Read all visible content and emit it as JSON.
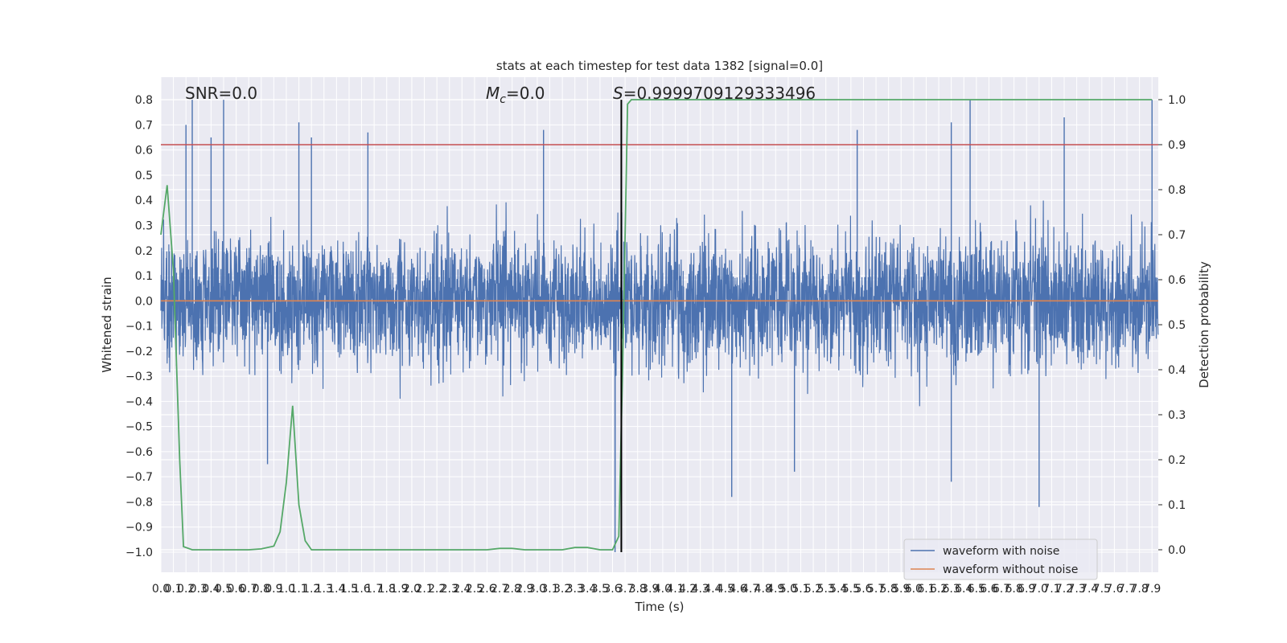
{
  "chart_data": {
    "type": "line",
    "title": "stats at each timestep for test data 1382 [signal=0.0]",
    "xlabel": "Time (s)",
    "ylabel_left": "Whitened strain",
    "ylabel_right": "Detection probability",
    "xlim": [
      0.0,
      7.95
    ],
    "ylim_left": [
      -1.08,
      0.89
    ],
    "ylim_right": [
      -0.05,
      1.05
    ],
    "grid": true,
    "legend_placement": "lower-right",
    "x_ticks": [
      0.0,
      0.1,
      0.2,
      0.3,
      0.4,
      0.5,
      0.6,
      0.7,
      0.8,
      0.9,
      1.0,
      1.1,
      1.2,
      1.3,
      1.4,
      1.5,
      1.6,
      1.7,
      1.8,
      1.9,
      2.0,
      2.1,
      2.2,
      2.3,
      2.4,
      2.5,
      2.6,
      2.7,
      2.8,
      2.9,
      3.0,
      3.1,
      3.2,
      3.3,
      3.4,
      3.5,
      3.6,
      3.7,
      3.8,
      3.9,
      4.0,
      4.1,
      4.2,
      4.3,
      4.4,
      4.5,
      4.6,
      4.7,
      4.8,
      4.9,
      5.0,
      5.1,
      5.2,
      5.3,
      5.4,
      5.5,
      5.6,
      5.7,
      5.8,
      5.9,
      6.0,
      6.1,
      6.2,
      6.3,
      6.4,
      6.5,
      6.6,
      6.7,
      6.8,
      6.9,
      7.0,
      7.1,
      7.2,
      7.3,
      7.4,
      7.5,
      7.6,
      7.7,
      7.8,
      7.9
    ],
    "x_tick_labels": [
      "0.0",
      "0.1",
      "0.2",
      "0.3",
      "0.4",
      "0.5",
      "0.6",
      "0.7",
      "0.8",
      "0.9",
      "1.0",
      "1.1",
      "1.2",
      "1.3",
      "1.4",
      "1.5",
      "1.6",
      "1.7",
      "1.8",
      "1.9",
      "2.0",
      "2.1",
      "2.2",
      "2.3",
      "2.4",
      "2.5",
      "2.6",
      "2.7",
      "2.8",
      "2.9",
      "3.0",
      "3.1",
      "3.2",
      "3.3",
      "3.4",
      "3.5",
      "3.6",
      "3.7",
      "3.8",
      "3.9",
      "4.0",
      "4.1",
      "4.2",
      "4.3",
      "4.4",
      "4.5",
      "4.6",
      "4.7",
      "4.8",
      "4.9",
      "5.0",
      "5.1",
      "5.2",
      "5.3",
      "5.4",
      "5.5",
      "5.6",
      "5.7",
      "5.8",
      "5.9",
      "6.0",
      "6.1",
      "6.2",
      "6.3",
      "6.4",
      "6.5",
      "6.6",
      "6.7",
      "6.8",
      "6.9",
      "7.0",
      "7.1",
      "7.2",
      "7.3",
      "7.4",
      "7.5",
      "7.6",
      "7.7",
      "7.8",
      "7.9"
    ],
    "y_left_ticks": [
      -1.0,
      -0.9,
      -0.8,
      -0.7,
      -0.6,
      -0.5,
      -0.4,
      -0.3,
      -0.2,
      -0.1,
      0.0,
      0.1,
      0.2,
      0.3,
      0.4,
      0.5,
      0.6,
      0.7,
      0.8
    ],
    "y_left_tick_labels": [
      "−1.0",
      "−0.9",
      "−0.8",
      "−0.7",
      "−0.6",
      "−0.5",
      "−0.4",
      "−0.3",
      "−0.2",
      "−0.1",
      "0.0",
      "0.1",
      "0.2",
      "0.3",
      "0.4",
      "0.5",
      "0.6",
      "0.7",
      "0.8"
    ],
    "y_right_ticks": [
      0.0,
      0.1,
      0.2,
      0.3,
      0.4,
      0.5,
      0.6,
      0.7,
      0.8,
      0.9,
      1.0
    ],
    "y_right_tick_labels": [
      "0.0",
      "0.1",
      "0.2",
      "0.3",
      "0.4",
      "0.5",
      "0.6",
      "0.7",
      "0.8",
      "0.9",
      "1.0"
    ],
    "annotations": {
      "snr": "SNR=0.0",
      "mc_symbol": "M",
      "mc_sub": "c",
      "mc_value": "=0.0",
      "s_symbol": "S",
      "s_value": "=0.9999709129333496"
    },
    "threshold_line": {
      "axis": "right",
      "y": 0.9,
      "color": "#c44e52"
    },
    "vertical_marker": {
      "x": 3.67,
      "y_range": [
        -1.0,
        0.8
      ],
      "color": "#000000"
    },
    "series": [
      {
        "name": "waveform with noise",
        "axis": "left",
        "color": "#4c72b0",
        "description_range": {
          "typical_amplitude": 0.3,
          "peak_max": 0.8,
          "peak_min": -1.0
        },
        "peaks": [
          {
            "x": 0.2,
            "y": 0.7
          },
          {
            "x": 0.25,
            "y": 0.8
          },
          {
            "x": 0.5,
            "y": 0.8
          },
          {
            "x": 0.4,
            "y": 0.65
          },
          {
            "x": 1.1,
            "y": 0.71
          },
          {
            "x": 1.2,
            "y": 0.65
          },
          {
            "x": 1.65,
            "y": 0.67
          },
          {
            "x": 3.05,
            "y": 0.68
          },
          {
            "x": 6.45,
            "y": 0.8
          },
          {
            "x": 6.3,
            "y": 0.71
          },
          {
            "x": 5.55,
            "y": 0.68
          },
          {
            "x": 7.2,
            "y": 0.73
          },
          {
            "x": 7.9,
            "y": 0.8
          },
          {
            "x": 3.62,
            "y": -1.0
          },
          {
            "x": 3.62,
            "y": -0.82
          },
          {
            "x": 4.55,
            "y": -0.78
          },
          {
            "x": 7.0,
            "y": -0.82
          },
          {
            "x": 0.85,
            "y": -0.65
          },
          {
            "x": 5.05,
            "y": -0.68
          },
          {
            "x": 6.3,
            "y": -0.72
          }
        ]
      },
      {
        "name": "waveform without noise",
        "axis": "left",
        "color": "#dd8452",
        "x": [
          0.0,
          7.95
        ],
        "y": [
          0.0,
          0.0
        ]
      },
      {
        "axis": "right",
        "color": "#55a868",
        "x": [
          0.0,
          0.05,
          0.1,
          0.15,
          0.18,
          0.25,
          0.3,
          0.5,
          0.7,
          0.8,
          0.9,
          0.95,
          1.0,
          1.05,
          1.1,
          1.15,
          1.2,
          1.3,
          1.5,
          2.0,
          2.5,
          2.6,
          2.7,
          2.8,
          2.9,
          3.0,
          3.1,
          3.2,
          3.3,
          3.4,
          3.5,
          3.55,
          3.6,
          3.65,
          3.68,
          3.72,
          3.75,
          3.8,
          4.0,
          5.0,
          6.0,
          7.0,
          7.9
        ],
        "y": [
          0.7,
          0.81,
          0.62,
          0.2,
          0.007,
          0.0,
          0.0,
          0.0,
          0.0,
          0.002,
          0.008,
          0.04,
          0.15,
          0.32,
          0.1,
          0.02,
          0.0,
          0.0,
          0.0,
          0.0,
          0.0,
          0.0,
          0.003,
          0.003,
          0.0,
          0.0,
          0.0,
          0.0,
          0.005,
          0.005,
          0.0,
          0.0,
          0.0,
          0.03,
          0.4,
          0.99,
          1.0,
          1.0,
          1.0,
          1.0,
          1.0,
          1.0,
          1.0
        ]
      }
    ]
  }
}
